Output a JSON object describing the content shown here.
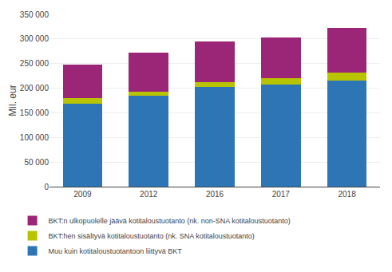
{
  "chart_data": {
    "type": "bar",
    "stacked": true,
    "categories": [
      "2009",
      "2012",
      "2016",
      "2017",
      "2018"
    ],
    "series": [
      {
        "name": "Muu kuin kotitaloustuotantoon liittyvä BKT",
        "color": "#2e75b6",
        "values": [
          168000,
          185000,
          202000,
          208000,
          215000
        ]
      },
      {
        "name": "BKT:hen sisältyvä kotitaloustuotanto (nk. SNA kotitaloustuotanto)",
        "color": "#b8c400",
        "values": [
          12000,
          8000,
          11000,
          13000,
          17000
        ]
      },
      {
        "name": "BKT:n ulkopuolelle jäävä kotitaloustuotanto (nk. non-SNA kotitaloustuotanto)",
        "color": "#9b2577",
        "values": [
          68000,
          80000,
          82000,
          82000,
          90000
        ]
      }
    ],
    "ylabel": "Mil. eur",
    "ylim": [
      0,
      350000
    ],
    "yticks": [
      0,
      {
        "value": 50000,
        "label": "50 000"
      },
      {
        "value": 100000,
        "label": "100 000"
      },
      {
        "value": 150000,
        "label": "150 000"
      },
      {
        "value": 200000,
        "label": "200 000"
      },
      {
        "value": 250000,
        "label": "250 000"
      },
      {
        "value": 300000,
        "label": "300 000"
      },
      {
        "value": 350000,
        "label": "350 000"
      }
    ],
    "grid": true,
    "legend": "bottom"
  }
}
